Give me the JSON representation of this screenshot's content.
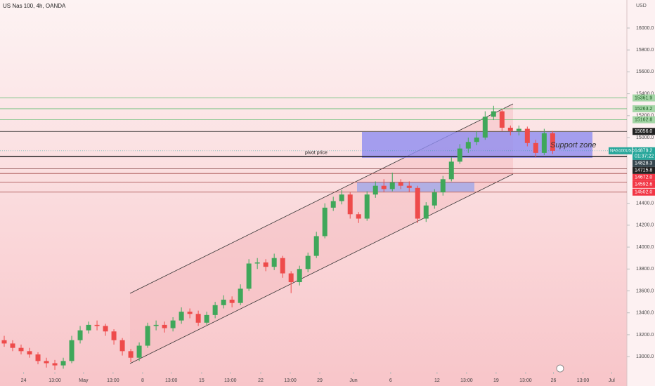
{
  "chart_data": {
    "type": "candlestick",
    "title": "US Nas 100, 4h, OANDA",
    "currency": "USD",
    "ylim": [
      12860,
      16256
    ],
    "xlim": [
      0,
      74.3
    ],
    "yticks": [
      {
        "value": 13000,
        "label": "13000.0"
      },
      {
        "value": 13200,
        "label": "13200.0"
      },
      {
        "value": 13400,
        "label": "13400.0"
      },
      {
        "value": 13600,
        "label": "13600.0"
      },
      {
        "value": 13800,
        "label": "13800.0"
      },
      {
        "value": 14000,
        "label": "14000.0"
      },
      {
        "value": 14200,
        "label": "14200.0"
      },
      {
        "value": 14400,
        "label": "14400.0"
      },
      {
        "value": 15000,
        "label": "15000.0"
      },
      {
        "value": 15200,
        "label": "15200.0"
      },
      {
        "value": 15400,
        "label": "15400.0"
      },
      {
        "value": 15600,
        "label": "15600.0"
      },
      {
        "value": 15800,
        "label": "15800.0"
      },
      {
        "value": 16000,
        "label": "16000.0"
      }
    ],
    "xticks": [
      {
        "value": 2.8,
        "label": "24"
      },
      {
        "value": 6.5,
        "label": "13:00"
      },
      {
        "value": 9.9,
        "label": "May"
      },
      {
        "value": 13.4,
        "label": "13:00"
      },
      {
        "value": 16.9,
        "label": "8"
      },
      {
        "value": 20.3,
        "label": "13:00"
      },
      {
        "value": 23.9,
        "label": "15"
      },
      {
        "value": 27.3,
        "label": "13:00"
      },
      {
        "value": 30.9,
        "label": "22"
      },
      {
        "value": 34.4,
        "label": "13:00"
      },
      {
        "value": 37.9,
        "label": "29"
      },
      {
        "value": 41.9,
        "label": "Jun"
      },
      {
        "value": 46.3,
        "label": "6"
      },
      {
        "value": 51.8,
        "label": "12"
      },
      {
        "value": 55.3,
        "label": "13:00"
      },
      {
        "value": 58.8,
        "label": "19"
      },
      {
        "value": 62.3,
        "label": "13:00"
      },
      {
        "value": 65.6,
        "label": "26"
      },
      {
        "value": 69.1,
        "label": "13:00"
      },
      {
        "value": 72.5,
        "label": "Jul"
      }
    ],
    "up_color": "#3fa75a",
    "down_color": "#ee4b4b",
    "candles": [
      [
        13150,
        13190,
        13090,
        13120
      ],
      [
        13120,
        13150,
        13050,
        13080
      ],
      [
        13080,
        13110,
        13020,
        13050
      ],
      [
        13050,
        13080,
        12990,
        13020
      ],
      [
        13020,
        13040,
        12930,
        12960
      ],
      [
        12960,
        12990,
        12900,
        12940
      ],
      [
        12940,
        12970,
        12880,
        12920
      ],
      [
        12920,
        12990,
        12890,
        12960
      ],
      [
        12960,
        13190,
        12940,
        13150
      ],
      [
        13150,
        13280,
        13120,
        13240
      ],
      [
        13240,
        13320,
        13210,
        13290
      ],
      [
        13290,
        13330,
        13240,
        13280
      ],
      [
        13280,
        13300,
        13190,
        13230
      ],
      [
        13230,
        13250,
        13110,
        13150
      ],
      [
        13150,
        13170,
        13010,
        13050
      ],
      [
        13050,
        13070,
        12950,
        12990
      ],
      [
        12990,
        13130,
        12960,
        13100
      ],
      [
        13100,
        13310,
        13080,
        13280
      ],
      [
        13280,
        13330,
        13240,
        13290
      ],
      [
        13290,
        13320,
        13220,
        13260
      ],
      [
        13260,
        13360,
        13230,
        13330
      ],
      [
        13330,
        13450,
        13300,
        13410
      ],
      [
        13410,
        13440,
        13350,
        13390
      ],
      [
        13390,
        13420,
        13280,
        13310
      ],
      [
        13310,
        13410,
        13290,
        13380
      ],
      [
        13380,
        13500,
        13350,
        13470
      ],
      [
        13470,
        13560,
        13440,
        13520
      ],
      [
        13520,
        13550,
        13450,
        13490
      ],
      [
        13490,
        13660,
        13470,
        13620
      ],
      [
        13620,
        13890,
        13600,
        13850
      ],
      [
        13850,
        13900,
        13800,
        13860
      ],
      [
        13860,
        13890,
        13780,
        13820
      ],
      [
        13820,
        13940,
        13790,
        13900
      ],
      [
        13900,
        13920,
        13720,
        13760
      ],
      [
        13760,
        13780,
        13580,
        13680
      ],
      [
        13680,
        13830,
        13650,
        13800
      ],
      [
        13800,
        13950,
        13770,
        13920
      ],
      [
        13920,
        14140,
        13900,
        14100
      ],
      [
        14100,
        14400,
        14080,
        14360
      ],
      [
        14360,
        14460,
        14330,
        14420
      ],
      [
        14420,
        14520,
        14390,
        14480
      ],
      [
        14480,
        14500,
        14260,
        14300
      ],
      [
        14300,
        14320,
        14220,
        14260
      ],
      [
        14260,
        14510,
        14240,
        14480
      ],
      [
        14480,
        14600,
        14450,
        14560
      ],
      [
        14560,
        14620,
        14500,
        14530
      ],
      [
        14530,
        14680,
        14510,
        14590
      ],
      [
        14590,
        14620,
        14530,
        14560
      ],
      [
        14560,
        14600,
        14500,
        14540
      ],
      [
        14540,
        14560,
        14220,
        14260
      ],
      [
        14260,
        14410,
        14230,
        14380
      ],
      [
        14380,
        14530,
        14350,
        14500
      ],
      [
        14500,
        14650,
        14470,
        14620
      ],
      [
        14620,
        14820,
        14600,
        14780
      ],
      [
        14780,
        14940,
        14760,
        14900
      ],
      [
        14900,
        15000,
        14860,
        14960
      ],
      [
        14960,
        15060,
        14930,
        15000
      ],
      [
        15000,
        15240,
        14980,
        15190
      ],
      [
        15190,
        15290,
        15160,
        15240
      ],
      [
        15240,
        15260,
        15060,
        15090
      ],
      [
        15090,
        15110,
        15020,
        15060
      ],
      [
        15060,
        15110,
        15020,
        15080
      ],
      [
        15080,
        15100,
        14920,
        14950
      ],
      [
        14950,
        14980,
        14820,
        14860
      ],
      [
        14860,
        15080,
        14840,
        15040
      ],
      [
        15040,
        15060,
        14850,
        14879.2
      ]
    ],
    "levels": [
      {
        "value": 15361.9,
        "label": "15361.9",
        "color": "#6cbf7a",
        "tag_color": "#a5d6a7",
        "text_color": "#1b5e20"
      },
      {
        "value": 15263.2,
        "label": "15263.2",
        "color": "#6cbf7a",
        "tag_color": "#a5d6a7",
        "text_color": "#1b5e20"
      },
      {
        "value": 15162.8,
        "label": "15162.8",
        "color": "#6cbf7a",
        "tag_color": "#a5d6a7",
        "text_color": "#1b5e20"
      },
      {
        "value": 15056.0,
        "label": "15056.0",
        "color": "#222222",
        "tag_color": "#222222",
        "text_color": "#ffffff"
      },
      {
        "value": 14828.3,
        "label": "14828.3",
        "color": "#111111",
        "tag_color": "#37474f",
        "text_color": "#ffffff",
        "name": "pivot price"
      },
      {
        "value": 14715.8,
        "label": "14715.8",
        "color": "#7a3b3b",
        "tag_color": "#222222",
        "text_color": "#ffffff"
      },
      {
        "value": 14672.0,
        "label": "14672.0",
        "color": "#a04545",
        "tag_color": "#f23645",
        "text_color": "#ffffff"
      },
      {
        "value": 14592.6,
        "label": "14592.6",
        "color": "#a04545",
        "tag_color": "#f23645",
        "text_color": "#ffffff"
      },
      {
        "value": 14502.0,
        "label": "14502.0",
        "color": "#a04545",
        "tag_color": "#f23645",
        "text_color": "#ffffff"
      }
    ],
    "current": {
      "symbol": "NAS100USD",
      "price": 14879.2,
      "countdown": "01:37:22",
      "color": "#26a69a"
    },
    "annotations": [
      "Support zone"
    ]
  }
}
